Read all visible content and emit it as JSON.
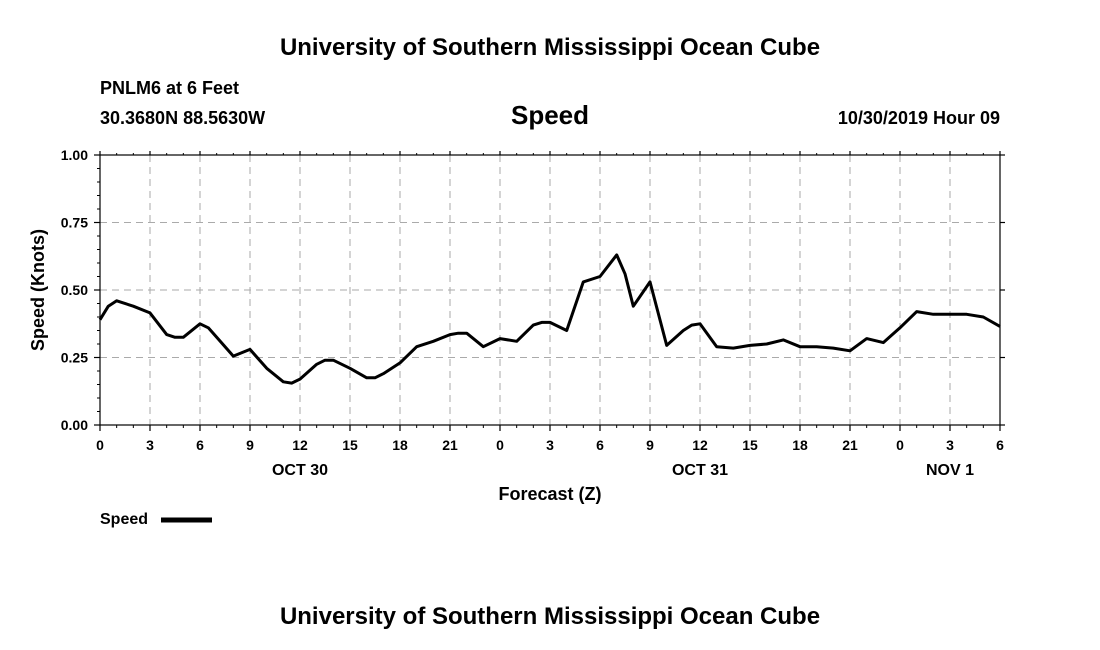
{
  "header": {
    "org_title": "University of Southern Mississippi Ocean Cube",
    "station": "PNLM6 at 6 Feet",
    "coords": "30.3680N 88.5630W",
    "variable": "Speed",
    "issued": "10/30/2019 Hour 09"
  },
  "footer": {
    "org_title": "University of Southern Mississippi Ocean Cube"
  },
  "chart_data": {
    "type": "line",
    "title": "Speed",
    "xlabel": "Forecast (Z)",
    "ylabel": "Speed (Knots)",
    "xlim": [
      0,
      54
    ],
    "ylim": [
      0,
      1
    ],
    "grid": true,
    "x_ticks": [
      0,
      3,
      6,
      9,
      12,
      15,
      18,
      21,
      24,
      27,
      30,
      33,
      36,
      39,
      42,
      45,
      48,
      51,
      54
    ],
    "x_tick_labels": [
      "0",
      "3",
      "6",
      "9",
      "12",
      "15",
      "18",
      "21",
      "0",
      "3",
      "6",
      "9",
      "12",
      "15",
      "18",
      "21",
      "0",
      "3",
      "6"
    ],
    "date_labels": [
      {
        "at": 12,
        "text": "OCT 30"
      },
      {
        "at": 36,
        "text": "OCT 31"
      },
      {
        "at": 51,
        "text": "NOV 1"
      }
    ],
    "y_ticks": [
      0,
      0.25,
      0.5,
      0.75,
      1
    ],
    "y_tick_labels": [
      "0.00",
      "0.25",
      "0.50",
      "0.75",
      "1.00"
    ],
    "legend": {
      "label": "Speed",
      "position": "bottom-left"
    },
    "series": [
      {
        "name": "Speed",
        "color": "#000000",
        "x": [
          0,
          0.5,
          1,
          2,
          3,
          4,
          4.5,
          5,
          6,
          6.5,
          7,
          8,
          9,
          10,
          11,
          11.5,
          12,
          13,
          13.5,
          14,
          15,
          16,
          16.5,
          17,
          18,
          19,
          20,
          21,
          21.5,
          22,
          23,
          24,
          25,
          26,
          26.5,
          27,
          28,
          29,
          30,
          31,
          31.5,
          32,
          33,
          34,
          35,
          35.5,
          36,
          37,
          38,
          39,
          40,
          41,
          42,
          43,
          44,
          45,
          46,
          47,
          48,
          49,
          50,
          51,
          52,
          53,
          54
        ],
        "y": [
          0.39,
          0.44,
          0.46,
          0.44,
          0.415,
          0.335,
          0.325,
          0.325,
          0.375,
          0.36,
          0.325,
          0.255,
          0.28,
          0.21,
          0.16,
          0.155,
          0.17,
          0.225,
          0.24,
          0.24,
          0.21,
          0.175,
          0.175,
          0.19,
          0.23,
          0.29,
          0.31,
          0.335,
          0.34,
          0.34,
          0.29,
          0.32,
          0.31,
          0.37,
          0.38,
          0.38,
          0.35,
          0.53,
          0.55,
          0.63,
          0.56,
          0.44,
          0.53,
          0.295,
          0.35,
          0.37,
          0.375,
          0.29,
          0.285,
          0.295,
          0.3,
          0.315,
          0.29,
          0.29,
          0.285,
          0.275,
          0.32,
          0.305,
          0.36,
          0.42,
          0.41,
          0.41,
          0.41,
          0.4,
          0.365
        ]
      }
    ]
  }
}
